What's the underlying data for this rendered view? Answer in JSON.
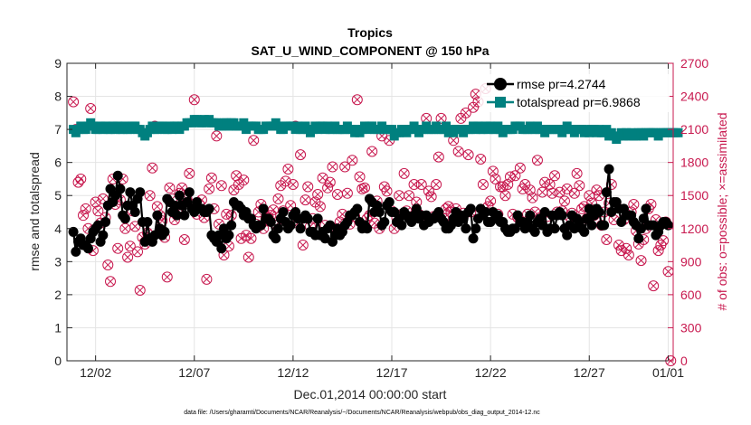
{
  "chart_data": {
    "type": "line",
    "title": "Tropics",
    "subtitle": "SAT_U_WIND_COMPONENT @ 150 hPa",
    "xlabel": "Dec.01,2014 00:00:00 start",
    "ylabel_left": "rmse and totalspread",
    "ylabel_right": "# of obs: o=possible; ×=assimilated",
    "footnote": "data file: /Users/gharamti/Documents/NCAR/Reanalysis/~/Documents/NCAR/Reanalysis/webpub/obs_diag_output_2014-12.nc",
    "x_range": [
      0.55,
      31.25
    ],
    "ylim_left": [
      0,
      9
    ],
    "ylim_right": [
      0,
      2700
    ],
    "x_ticks": [
      {
        "value": 2,
        "label": "12/02"
      },
      {
        "value": 7,
        "label": "12/07"
      },
      {
        "value": 12,
        "label": "12/12"
      },
      {
        "value": 17,
        "label": "12/17"
      },
      {
        "value": 22,
        "label": "12/22"
      },
      {
        "value": 27,
        "label": "12/27"
      },
      {
        "value": 31,
        "label": "01/01"
      }
    ],
    "y_ticks_left": [
      "0",
      "1",
      "2",
      "3",
      "4",
      "5",
      "6",
      "7",
      "8",
      "9"
    ],
    "y_ticks_right": [
      "0",
      "300",
      "600",
      "900",
      "1200",
      "1500",
      "1800",
      "2100",
      "2400",
      "2700"
    ],
    "grid": true,
    "legend_position": "top-right",
    "colors": {
      "rmse": "#000000",
      "totalspread": "#00807f",
      "obs": "#c8194f",
      "grid": "#e4e4e4",
      "axis": "#262626"
    },
    "series": [
      {
        "name": "rmse",
        "legend_label": "rmse pr=4.2744",
        "start": 0.875,
        "step": 0.125,
        "values": [
          3.9,
          3.3,
          3.6,
          3.7,
          3.5,
          3.5,
          3.4,
          3.7,
          3.9,
          4.0,
          4.1,
          3.6,
          3.8,
          4.2,
          4.7,
          5.2,
          4.8,
          5.0,
          5.6,
          5.2,
          4.4,
          4.3,
          4.7,
          5.1,
          4.7,
          4.5,
          4.9,
          5.1,
          4.2,
          3.6,
          4.2,
          3.7,
          3.6,
          3.8,
          4.4,
          4.0,
          3.8,
          3.9,
          4.9,
          4.8,
          4.5,
          4.7,
          4.4,
          5.0,
          4.7,
          4.4,
          4.8,
          5.1,
          4.6,
          4.5,
          4.8,
          4.6,
          4.6,
          4.5,
          4.5,
          4.6,
          3.8,
          3.7,
          3.6,
          3.8,
          3.4,
          4.0,
          3.7,
          3.8,
          4.1,
          4.8,
          4.7,
          4.7,
          4.6,
          4.4,
          4.5,
          4.3,
          4.3,
          4.1,
          4.0,
          4.1,
          4.1,
          4.6,
          4.3,
          4.3,
          4.2,
          3.8,
          3.7,
          4.0,
          4.3,
          4.5,
          4.2,
          4.0,
          4.1,
          4.4,
          4.5,
          4.3,
          4.0,
          4.3,
          4.4,
          4.3,
          3.9,
          3.9,
          3.8,
          4.3,
          3.8,
          3.9,
          3.7,
          4.0,
          4.1,
          3.6,
          3.8,
          4.0,
          3.8,
          3.9,
          4.1,
          4.2,
          4.4,
          4.4,
          4.5,
          4.6,
          4.2,
          4.0,
          4.1,
          4.0,
          4.9,
          4.8,
          4.5,
          4.7,
          4.5,
          4.1,
          4.2,
          4.7,
          4.8,
          4.5,
          4.5,
          4.2,
          4.3,
          4.1,
          4.5,
          4.4,
          4.3,
          4.2,
          4.4,
          4.6,
          4.3,
          4.4,
          4.1,
          4.4,
          4.2,
          4.3,
          4.3,
          4.4,
          4.5,
          4.3,
          4.2,
          4.0,
          4.0,
          4.1,
          4.3,
          4.5,
          4.2,
          4.4,
          4.3,
          4.0,
          4.5,
          4.6,
          3.7,
          4.0,
          4.3,
          4.6,
          4.4,
          4.5,
          4.2,
          4.2,
          4.5,
          4.3,
          4.4,
          4.2,
          4.2,
          4.0,
          3.9,
          3.9,
          4.0,
          4.0,
          4.4,
          4.2,
          4.2,
          4.0,
          4.2,
          4.4,
          4.0,
          3.9,
          4.2,
          4.3,
          4.1,
          4.5,
          3.9,
          4.0,
          4.4,
          4.0,
          4.4,
          4.5,
          4.4,
          4.0,
          3.8,
          4.1,
          4.4,
          4.0,
          4.3,
          4.2,
          4.0,
          3.9,
          4.3,
          4.6,
          4.1,
          4.4,
          4.6,
          4.5,
          4.1,
          4.1,
          5.1,
          5.8,
          4.5,
          4.8,
          4.8,
          4.6,
          4.2,
          4.6,
          4.4,
          4.4,
          4.4,
          4.2,
          4.1,
          3.7,
          4.0,
          4.3,
          4.6,
          4.1,
          4.1,
          4.1,
          3.8,
          3.9,
          4.1,
          4.2,
          4.2,
          4.1
        ]
      },
      {
        "name": "totalspread",
        "legend_label": "totalspread pr=6.9868",
        "start": 0.875,
        "step": 0.125,
        "values": [
          7.0,
          6.9,
          7.0,
          7.1,
          7.0,
          7.0,
          7.1,
          7.2,
          7.1,
          7.0,
          7.0,
          7.1,
          7.0,
          7.1,
          7.0,
          7.0,
          7.1,
          7.0,
          7.1,
          7.0,
          7.0,
          7.1,
          7.0,
          7.0,
          7.1,
          7.1,
          7.0,
          7.0,
          6.9,
          6.8,
          6.9,
          7.0,
          7.1,
          7.0,
          7.0,
          7.1,
          7.1,
          7.0,
          7.0,
          7.1,
          7.0,
          7.1,
          7.1,
          7.0,
          7.1,
          7.1,
          7.2,
          7.2,
          7.2,
          7.3,
          7.3,
          7.2,
          7.2,
          7.3,
          7.2,
          7.3,
          7.2,
          7.2,
          7.2,
          7.1,
          7.1,
          7.2,
          7.2,
          7.1,
          7.2,
          7.2,
          7.1,
          7.1,
          7.1,
          7.2,
          7.0,
          7.1,
          7.1,
          7.1,
          7.1,
          7.0,
          7.0,
          7.0,
          7.1,
          7.1,
          7.1,
          7.1,
          7.2,
          7.1,
          7.0,
          7.0,
          7.1,
          7.1,
          7.1,
          7.1,
          7.0,
          7.1,
          7.0,
          7.0,
          7.1,
          7.0,
          6.9,
          7.0,
          7.1,
          7.0,
          7.1,
          7.1,
          7.0,
          7.1,
          7.0,
          7.0,
          7.1,
          7.0,
          7.0,
          7.0,
          7.0,
          7.1,
          7.0,
          7.0,
          6.9,
          7.0,
          6.9,
          7.0,
          7.1,
          7.0,
          7.1,
          7.1,
          7.0,
          7.0,
          7.0,
          7.1,
          7.0,
          7.0,
          7.0,
          7.0,
          6.8,
          6.9,
          6.9,
          7.0,
          7.0,
          6.9,
          7.0,
          7.0,
          7.1,
          7.0,
          6.9,
          7.0,
          7.0,
          7.1,
          7.0,
          7.0,
          7.0,
          7.1,
          7.0,
          7.0,
          7.0,
          7.1,
          6.9,
          7.0,
          6.9,
          7.0,
          7.0,
          7.0,
          6.9,
          7.0,
          7.0,
          7.0,
          7.1,
          7.0,
          7.1,
          7.0,
          7.0,
          7.1,
          7.0,
          7.1,
          7.0,
          7.0,
          7.1,
          7.0,
          6.9,
          7.0,
          7.0,
          7.0,
          7.0,
          7.1,
          7.1,
          7.1,
          7.0,
          7.0,
          7.0,
          7.1,
          7.0,
          7.0,
          7.1,
          7.0,
          7.0,
          6.9,
          7.0,
          7.0,
          7.0,
          7.0,
          7.0,
          7.0,
          6.9,
          7.0,
          7.1,
          7.0,
          7.0,
          6.9,
          7.0,
          7.0,
          7.0,
          6.9,
          7.0,
          6.9,
          7.0,
          7.0,
          6.9,
          7.0,
          6.9,
          6.9,
          7.0,
          6.8,
          6.9,
          6.8,
          6.7,
          6.8,
          6.9,
          6.8,
          6.9,
          6.8,
          6.9,
          6.8,
          6.8,
          6.9,
          6.9,
          6.8,
          6.9,
          6.9,
          6.9,
          6.9,
          6.9,
          6.8,
          6.9,
          6.9,
          6.9,
          6.9,
          6.9,
          6.9,
          6.9,
          6.9
        ]
      },
      {
        "name": "obs_possible",
        "axis": "right",
        "start": 0.875,
        "step": 0.125,
        "values": [
          2350,
          2100,
          1620,
          1650,
          1320,
          1380,
          1200,
          2290,
          1000,
          1440,
          1360,
          1250,
          1470,
          1300,
          870,
          720,
          1650,
          1420,
          1020,
          1460,
          1650,
          1200,
          940,
          1040,
          1360,
          1220,
          990,
          640,
          1120,
          1060,
          1160,
          1500,
          1750,
          2130,
          1400,
          1320,
          1270,
          1120,
          760,
          1570,
          1470,
          1280,
          1350,
          1520,
          1570,
          1100,
          1470,
          1700,
          1420,
          2370,
          1330,
          1420,
          1460,
          1300,
          740,
          1560,
          1660,
          1380,
          2040,
          1240,
          1590,
          960,
          1330,
          1040,
          1320,
          1550,
          1680,
          1600,
          1110,
          1640,
          1140,
          940,
          1110,
          2000,
          1240,
          1350,
          1420,
          1200,
          1290,
          1300,
          1320,
          1370,
          1230,
          1470,
          1590,
          1360,
          1630,
          1740,
          1410,
          1600,
          2130,
          1250,
          1870,
          1050,
          1460,
          1580,
          1220,
          1290,
          1440,
          1510,
          1400,
          1660,
          1230,
          1570,
          1620,
          1760,
          1200,
          1510,
          1260,
          1330,
          1760,
          1520,
          1240,
          1820,
          1310,
          2370,
          1670,
          1560,
          1570,
          1290,
          1320,
          1900,
          1250,
          1450,
          1200,
          2040,
          1580,
          1540,
          2000,
          1360,
          1200,
          1300,
          1500,
          1330,
          1700,
          1360,
          1500,
          1310,
          1600,
          1440,
          1330,
          1600,
          1270,
          2200,
          1540,
          1490,
          1310,
          1600,
          1850,
          2200,
          1290,
          1380,
          1400,
          1350,
          2000,
          1380,
          1900,
          2200,
          1340,
          2250,
          1870,
          1350,
          2300,
          2420,
          2350,
          1830,
          1600,
          2470,
          1400,
          1450,
          1720,
          1650,
          1330,
          1580,
          1580,
          1500,
          1600,
          1670,
          1330,
          1680,
          1300,
          1750,
          1560,
          1600,
          1330,
          1550,
          1480,
          1350,
          1820,
          1300,
          1530,
          1620,
          1310,
          1600,
          1520,
          1680,
          1350,
          1530,
          1360,
          1450,
          1560,
          1310,
          1340,
          1520,
          1700,
          1590,
          1380,
          1400,
          1290,
          1500,
          1430,
          1320,
          1550,
          1500,
          1230,
          1350,
          1100,
          1430,
          1600,
          1280,
          1400,
          1050,
          1000,
          1280,
          1020,
          960,
          1350,
          1420,
          1180,
          1060,
          910,
          1100,
          1200,
          1380,
          1420,
          680,
          1280,
          1000,
          1050,
          1090,
          1260,
          810,
          0
        ]
      }
    ]
  }
}
